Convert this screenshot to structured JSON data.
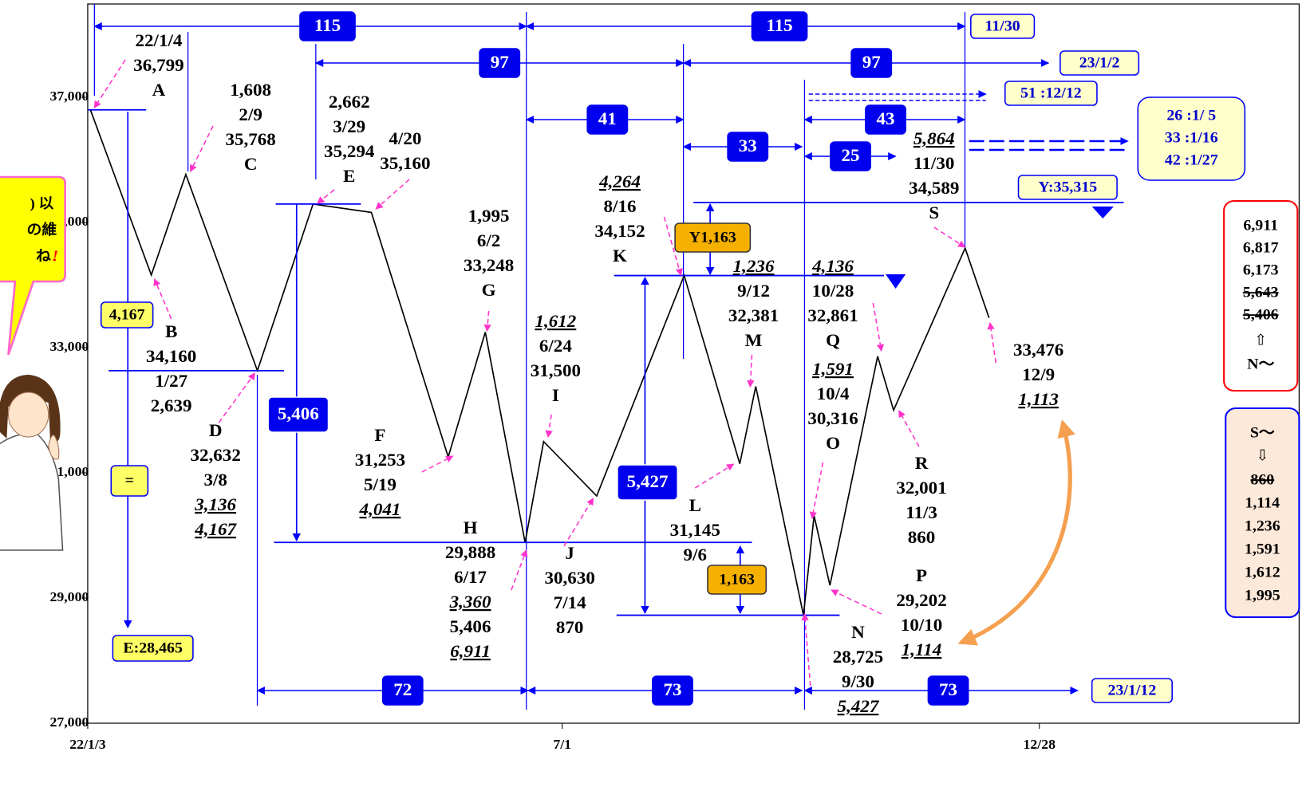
{
  "chart_data": {
    "type": "line",
    "x": [
      4,
      27,
      40,
      67,
      88,
      110,
      139,
      153,
      168,
      175,
      195,
      228,
      249,
      255,
      273,
      277,
      283,
      301,
      307,
      334,
      343
    ],
    "values": [
      36799,
      34160,
      35768,
      32632,
      35294,
      35160,
      31253,
      33248,
      29888,
      31500,
      30630,
      34152,
      31145,
      32381,
      28725,
      30316,
      29202,
      32861,
      32001,
      34589,
      33476
    ],
    "value_labels": [
      "36,799",
      "34,160",
      "35,768",
      "32,632",
      "35,294",
      "35,160",
      "31,253",
      "33,248",
      "29,888",
      "31,500",
      "30,630",
      "34,152",
      "31,145",
      "32,381",
      "28,725",
      "30,316",
      "29,202",
      "32,861",
      "32,001",
      "34,589",
      "33,476"
    ],
    "point_labels": [
      "A",
      "B",
      "C",
      "D",
      "E",
      null,
      "F",
      "G",
      "H",
      "I",
      "J",
      "K",
      "L",
      "M",
      "N",
      "O",
      "P",
      "Q",
      "R",
      "S",
      null
    ],
    "point_dates": [
      "22/1/4",
      "1/27",
      "2/9",
      "3/8",
      "3/29",
      "4/20",
      "5/19",
      "6/2",
      "6/17",
      "6/24",
      "7/14",
      "8/16",
      "9/6",
      "9/12",
      "9/30",
      "10/4",
      "10/10",
      "10/28",
      "11/3",
      "11/30",
      "12/9"
    ],
    "point_notes": [
      [],
      [
        "2,639"
      ],
      [
        "1,608"
      ],
      [
        "3,136",
        "4,167"
      ],
      [
        "2,662"
      ],
      [],
      [
        "4,041"
      ],
      [
        "1,995"
      ],
      [
        "3,360",
        "5,406",
        "6,911"
      ],
      [
        "1,612"
      ],
      [
        "870"
      ],
      [
        "4,264"
      ],
      [],
      [
        "1,236"
      ],
      [
        "5,427"
      ],
      [
        "1,591"
      ],
      [
        "1,114"
      ],
      [
        "4,136"
      ],
      [
        "860"
      ],
      [
        "5,864"
      ],
      [
        "1,113"
      ]
    ],
    "color": "#000000",
    "xlim": [
      3,
      460
    ],
    "xticks": [
      {
        "value": 3,
        "label": "22/1/3"
      },
      {
        "value": 182,
        "label": "7/1"
      },
      {
        "value": 362,
        "label": "12/28"
      }
    ],
    "ylim": [
      27000,
      38490
    ],
    "yticks": [
      {
        "value": 27000,
        "label": "27,000"
      },
      {
        "value": 29000,
        "label": "29,000"
      },
      {
        "value": 31000,
        "label": "31,000"
      },
      {
        "value": 33000,
        "label": "33,000"
      },
      {
        "value": 35000,
        "label": "35,000"
      },
      {
        "value": 37000,
        "label": "37,000"
      }
    ]
  },
  "annotations": {
    "spans": [
      "115",
      "115",
      "97",
      "97",
      "41",
      "43",
      "33",
      "25",
      "72",
      "73",
      "73"
    ],
    "date_boxes": [
      "11/30",
      "23/1/2",
      "51 :12/12",
      "23/1/12"
    ],
    "forecast": [
      "26 :1/ 5",
      "33 :1/16",
      "42 :1/27"
    ],
    "y_level": "Y:35,315",
    "e_level": "E:28,465",
    "range_boxes": [
      "4,167",
      "5,406",
      "5,427",
      "1,163",
      "Y1,163"
    ],
    "equals": "=",
    "n_list": [
      "6,911",
      "6,817",
      "6,173",
      "5,643",
      "5,406"
    ],
    "n_arrow": "⇧",
    "n_head": "N〜",
    "s_head": "S〜",
    "s_arrow": "⇩",
    "s_list": [
      "860",
      "1,114",
      "1,236",
      "1,591",
      "1,612",
      "1,995"
    ],
    "bubble": [
      ") 以",
      "の維",
      "ね",
      "!"
    ]
  }
}
